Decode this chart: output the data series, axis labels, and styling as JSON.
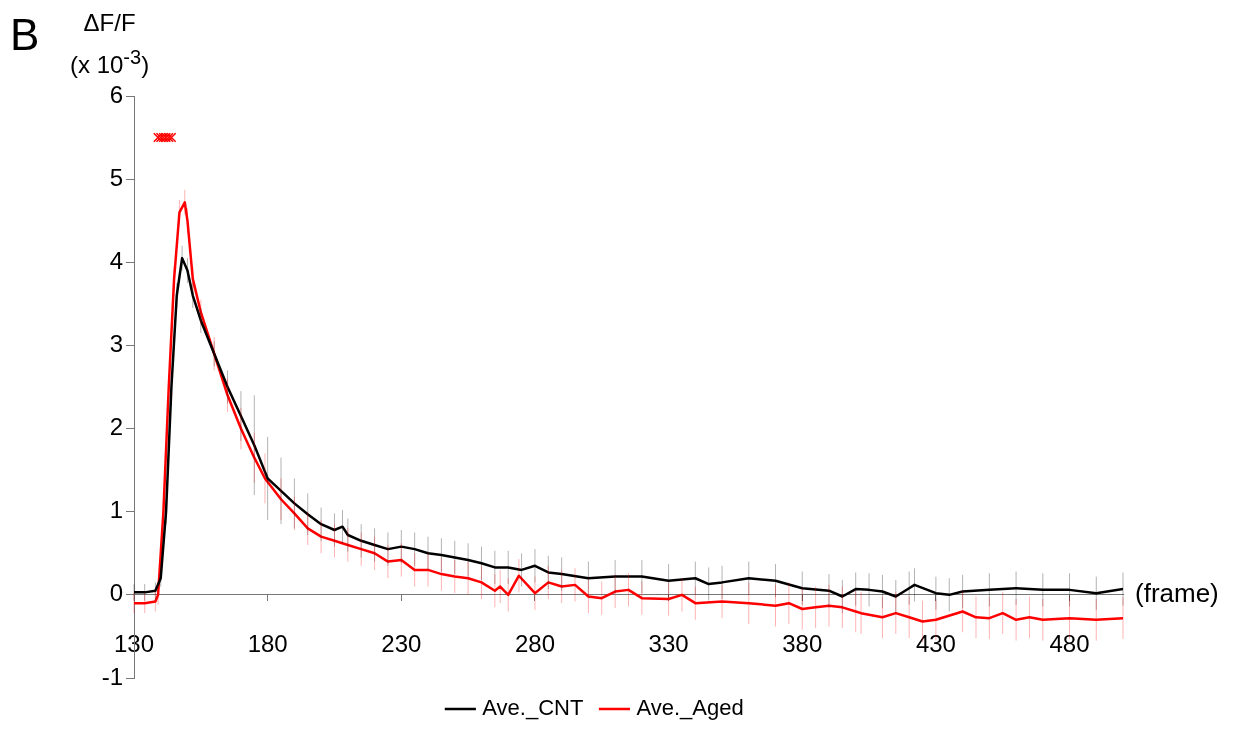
{
  "chart_data": {
    "type": "line",
    "annotations": [
      "B"
    ],
    "ylabel": "ΔF/F\n(x 10$^{-3}$)",
    "xlabel": "(frame)",
    "xlim": [
      130,
      500
    ],
    "xticks": [
      130,
      180,
      230,
      280,
      330,
      380,
      430,
      480
    ],
    "ylim": [
      -1,
      6
    ],
    "yticks": [
      -1,
      0,
      1,
      2,
      3,
      4,
      5,
      6
    ],
    "grid": false,
    "legend": "bottom",
    "line_style": "solid",
    "series": [
      {
        "name": "Ave._CNT",
        "color": "#000000",
        "x": [
          130,
          134,
          138,
          140,
          142,
          144,
          146,
          148,
          150,
          152,
          155,
          160,
          165,
          170,
          175,
          180,
          185,
          190,
          195,
          200,
          205,
          208,
          210,
          215,
          220,
          225,
          230,
          235,
          240,
          245,
          250,
          255,
          260,
          265,
          270,
          275,
          280,
          285,
          290,
          300,
          310,
          320,
          330,
          340,
          345,
          350,
          360,
          370,
          380,
          390,
          395,
          400,
          405,
          410,
          415,
          420,
          422,
          430,
          435,
          440,
          450,
          460,
          470,
          480,
          490,
          500
        ],
        "values": [
          0.03,
          0.03,
          0.05,
          0.2,
          1.0,
          2.5,
          3.6,
          4.05,
          3.9,
          3.6,
          3.3,
          2.9,
          2.5,
          2.15,
          1.8,
          1.4,
          1.25,
          1.1,
          0.97,
          0.85,
          0.78,
          0.82,
          0.72,
          0.65,
          0.6,
          0.55,
          0.58,
          0.55,
          0.5,
          0.48,
          0.45,
          0.42,
          0.38,
          0.33,
          0.33,
          0.3,
          0.35,
          0.27,
          0.25,
          0.2,
          0.22,
          0.22,
          0.17,
          0.2,
          0.13,
          0.15,
          0.2,
          0.17,
          0.08,
          0.05,
          -0.02,
          0.07,
          0.06,
          0.04,
          -0.02,
          0.08,
          0.12,
          0.02,
          0,
          0.04,
          0.06,
          0.08,
          0.06,
          0.06,
          0.02,
          0.07
        ],
        "errors": [
          0.1,
          0.1,
          0.1,
          0.1,
          0.15,
          0.15,
          0.15,
          0.15,
          0.15,
          0.15,
          0.15,
          0.15,
          0.2,
          0.3,
          0.6,
          0.5,
          0.4,
          0.3,
          0.25,
          0.2,
          0.2,
          0.2,
          0.2,
          0.2,
          0.2,
          0.2,
          0.2,
          0.2,
          0.2,
          0.2,
          0.2,
          0.2,
          0.2,
          0.2,
          0.2,
          0.2,
          0.2,
          0.2,
          0.2,
          0.2,
          0.2,
          0.2,
          0.2,
          0.2,
          0.2,
          0.2,
          0.2,
          0.2,
          0.2,
          0.2,
          0.2,
          0.2,
          0.2,
          0.2,
          0.2,
          0.2,
          0.2,
          0.2,
          0.2,
          0.2,
          0.2,
          0.2,
          0.2,
          0.2,
          0.2,
          0.2
        ]
      },
      {
        "name": "Ave._Aged",
        "color": "#ff0000",
        "x": [
          130,
          134,
          138,
          139,
          141,
          143,
          145,
          147,
          149,
          150,
          152,
          155,
          160,
          165,
          170,
          175,
          179,
          185,
          190,
          195,
          200,
          205,
          210,
          215,
          220,
          225,
          230,
          235,
          240,
          245,
          250,
          255,
          260,
          265,
          267,
          270,
          274,
          280,
          285,
          290,
          295,
          300,
          305,
          310,
          315,
          320,
          330,
          335,
          340,
          350,
          360,
          370,
          375,
          380,
          385,
          390,
          395,
          400,
          402,
          410,
          415,
          420,
          425,
          430,
          440,
          445,
          450,
          455,
          460,
          465,
          470,
          480,
          490,
          500
        ],
        "values": [
          -0.1,
          -0.1,
          -0.08,
          0.0,
          1.0,
          2.5,
          3.8,
          4.6,
          4.72,
          4.5,
          3.8,
          3.4,
          2.9,
          2.4,
          2.0,
          1.65,
          1.4,
          1.15,
          0.98,
          0.8,
          0.7,
          0.65,
          0.6,
          0.55,
          0.5,
          0.4,
          0.42,
          0.3,
          0.3,
          0.25,
          0.22,
          0.2,
          0.15,
          0.05,
          0.1,
          0,
          0.23,
          0.02,
          0.15,
          0.1,
          0.12,
          -0.02,
          -0.04,
          0.04,
          0.06,
          -0.04,
          -0.05,
          0,
          -0.1,
          -0.08,
          -0.1,
          -0.13,
          -0.1,
          -0.17,
          -0.15,
          -0.13,
          -0.15,
          -0.2,
          -0.22,
          -0.27,
          -0.22,
          -0.27,
          -0.32,
          -0.3,
          -0.2,
          -0.27,
          -0.28,
          -0.22,
          -0.3,
          -0.27,
          -0.3,
          -0.28,
          -0.3,
          -0.28
        ],
        "errors": [
          0.12,
          0.12,
          0.12,
          0.12,
          0.15,
          0.15,
          0.15,
          0.15,
          0.15,
          0.15,
          0.15,
          0.15,
          0.2,
          0.2,
          0.25,
          0.3,
          0.3,
          0.25,
          0.2,
          0.2,
          0.2,
          0.2,
          0.2,
          0.2,
          0.2,
          0.2,
          0.2,
          0.2,
          0.2,
          0.2,
          0.2,
          0.2,
          0.2,
          0.2,
          0.2,
          0.2,
          0.2,
          0.2,
          0.2,
          0.2,
          0.2,
          0.2,
          0.2,
          0.2,
          0.2,
          0.2,
          0.2,
          0.2,
          0.2,
          0.2,
          0.25,
          0.25,
          0.25,
          0.25,
          0.25,
          0.25,
          0.25,
          0.25,
          0.25,
          0.25,
          0.25,
          0.25,
          0.25,
          0.25,
          0.25,
          0.25,
          0.25,
          0.25,
          0.25,
          0.25,
          0.25,
          0.25,
          0.25,
          0.25
        ]
      },
      {
        "type": "scatter",
        "marker": "cross",
        "color": "#ff0000",
        "x": [
          139,
          140,
          141,
          142,
          143,
          144
        ],
        "values": [
          5.5,
          5.5,
          5.5,
          5.5,
          5.5,
          5.5
        ]
      }
    ]
  }
}
